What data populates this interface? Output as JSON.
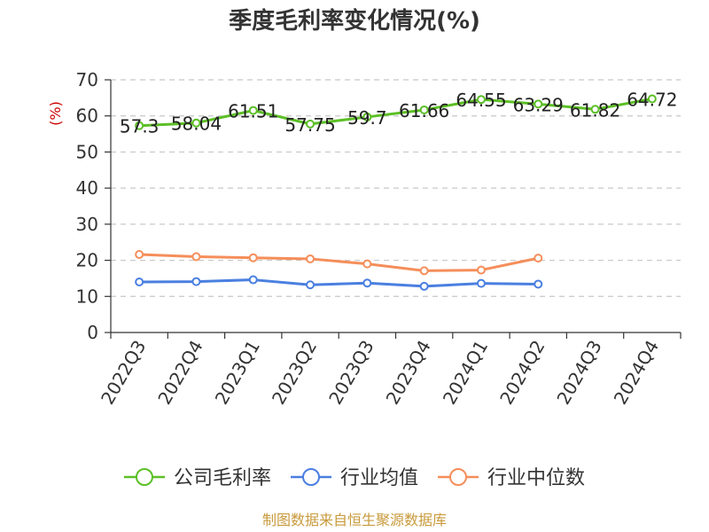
{
  "chart_data": {
    "type": "line",
    "title": "季度毛利率变化情况(%)",
    "ylabel": "(%)",
    "ylim": [
      0,
      70
    ],
    "yticks": [
      0,
      10,
      20,
      30,
      40,
      50,
      60,
      70
    ],
    "grid": true,
    "legend_position": "bottom",
    "categories": [
      "2022Q3",
      "2022Q4",
      "2023Q1",
      "2023Q2",
      "2023Q3",
      "2023Q4",
      "2024Q1",
      "2024Q2",
      "2024Q3",
      "2024Q4"
    ],
    "series": [
      {
        "name": "公司毛利率",
        "color": "#5cbf26",
        "values": [
          57.3,
          58.04,
          61.51,
          57.75,
          59.7,
          61.66,
          64.55,
          63.29,
          61.82,
          64.72
        ],
        "labels": [
          "57.3",
          "58.04",
          "61.51",
          "57.75",
          "59.7",
          "61.66",
          "64.55",
          "63.29",
          "61.82",
          "64.72"
        ]
      },
      {
        "name": "行业均值",
        "color": "#4a7fe0",
        "values": [
          14.0,
          14.1,
          14.6,
          13.2,
          13.7,
          12.8,
          13.6,
          13.4,
          null,
          null
        ]
      },
      {
        "name": "行业中位数",
        "color": "#f58e5a",
        "values": [
          21.6,
          21.0,
          20.7,
          20.4,
          19.0,
          17.1,
          17.3,
          20.6,
          null,
          null
        ]
      }
    ]
  },
  "source_text": "制图数据来自恒生聚源数据库"
}
